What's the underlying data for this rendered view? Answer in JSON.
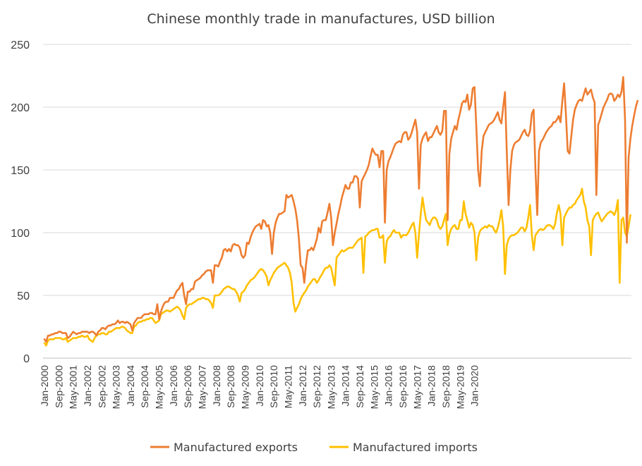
{
  "chart_data": {
    "type": "line",
    "title": "Chinese monthly trade in manufactures, USD billion",
    "xlabel": "",
    "ylabel": "",
    "ylim": [
      0,
      250
    ],
    "yticks": [
      0,
      50,
      100,
      150,
      200,
      250
    ],
    "x_start": "Jan-2000",
    "x_labels": [
      "Jan-2000",
      "Sep-2000",
      "May-2001",
      "Jan-2002",
      "Sep-2002",
      "May-2003",
      "Jan-2004",
      "Sep-2004",
      "May-2005",
      "Jan-2006",
      "Sep-2006",
      "May-2007",
      "Jan-2008",
      "Sep-2008",
      "May-2009",
      "Jan-2010",
      "Sep-2010",
      "May-2011",
      "Jan-2012",
      "Sep-2012",
      "May-2013",
      "Jan-2014",
      "Sep-2014",
      "May-2015",
      "Jan-2016",
      "Sep-2016",
      "May-2017",
      "Jan-2018",
      "Sep-2018",
      "May-2019",
      "Jan-2020"
    ],
    "x_label_step_months": 8,
    "grid": "horizontal",
    "legend_position": "bottom",
    "series": [
      {
        "name": "Manufactured exports",
        "color": "#ED7D31",
        "values": [
          15,
          13,
          18,
          18,
          19,
          19,
          20,
          20,
          21,
          21,
          20,
          20,
          20,
          16,
          17,
          19,
          21,
          20,
          19,
          20,
          20,
          21,
          21,
          21,
          21,
          20,
          21,
          21,
          20,
          18,
          21,
          22,
          24,
          24,
          23,
          25,
          26,
          26,
          27,
          27,
          28,
          30,
          28,
          29,
          29,
          28,
          29,
          28,
          27,
          22,
          28,
          30,
          32,
          32,
          32,
          34,
          35,
          35,
          35,
          36,
          36,
          35,
          35,
          43,
          31,
          37,
          41,
          44,
          45,
          45,
          48,
          48,
          48,
          51,
          54,
          55,
          58,
          60,
          50,
          43,
          53,
          53,
          55,
          55,
          61,
          62,
          63,
          64,
          66,
          67,
          69,
          70,
          70,
          70,
          60,
          74,
          74,
          73,
          77,
          80,
          86,
          87,
          85,
          87,
          85,
          90,
          91,
          90,
          90,
          88,
          82,
          80,
          82,
          92,
          91,
          96,
          100,
          103,
          105,
          106,
          107,
          103,
          110,
          109,
          105,
          106,
          100,
          83,
          100,
          108,
          112,
          115,
          115,
          116,
          117,
          130,
          128,
          129,
          130,
          125,
          119,
          110,
          95,
          74,
          72,
          60,
          75,
          86,
          86,
          88,
          86,
          90,
          95,
          104,
          100,
          109,
          110,
          110,
          116,
          123,
          112,
          90,
          100,
          107,
          115,
          121,
          128,
          133,
          138,
          135,
          135,
          140,
          140,
          145,
          145,
          143,
          120,
          141,
          144,
          147,
          150,
          154,
          161,
          167,
          164,
          162,
          162,
          152,
          165,
          165,
          108,
          150,
          157,
          160,
          164,
          168,
          171,
          172,
          173,
          172,
          178,
          180,
          180,
          174,
          176,
          180,
          185,
          190,
          180,
          135,
          170,
          175,
          178,
          180,
          173,
          176,
          176,
          179,
          182,
          185,
          180,
          178,
          181,
          197,
          197,
          110,
          163,
          175,
          180,
          185,
          182,
          190,
          196,
          203,
          205,
          204,
          210,
          198,
          202,
          215,
          216,
          185,
          150,
          137,
          165,
          177,
          180,
          183,
          186,
          187,
          188,
          190,
          193,
          196,
          190,
          187,
          200,
          212,
          165,
          122,
          150,
          165,
          170,
          172,
          173,
          174,
          177,
          180,
          182,
          178,
          177,
          181,
          195,
          198,
          150,
          114,
          165,
          172,
          174,
          177,
          180,
          182,
          184,
          185,
          188,
          188,
          190,
          193,
          188,
          205,
          219,
          195,
          165,
          163,
          177,
          190,
          198,
          202,
          205,
          206,
          205,
          210,
          215,
          210,
          212,
          214,
          208,
          204,
          130,
          186,
          190,
          195,
          200,
          203,
          206,
          210,
          211,
          210,
          205,
          207,
          210,
          208,
          212,
          224,
          190,
          92,
          160,
          175,
          185,
          193,
          200,
          205
        ]
      },
      {
        "name": "Manufactured imports",
        "color": "#FFC000",
        "values": [
          12,
          10,
          14,
          15,
          15,
          15,
          16,
          16,
          16,
          16,
          15,
          15,
          16,
          13,
          14,
          15,
          16,
          16,
          16,
          17,
          17,
          18,
          17,
          17,
          18,
          15,
          14,
          13,
          16,
          18,
          19,
          19,
          20,
          20,
          19,
          19,
          21,
          21,
          22,
          23,
          24,
          24,
          24,
          25,
          25,
          24,
          22,
          21,
          20,
          20,
          25,
          26,
          28,
          29,
          29,
          30,
          30,
          31,
          31,
          32,
          32,
          30,
          28,
          29,
          30,
          35,
          36,
          37,
          38,
          38,
          37,
          38,
          39,
          40,
          41,
          40,
          38,
          34,
          31,
          40,
          42,
          43,
          43,
          44,
          45,
          46,
          47,
          47,
          48,
          48,
          47,
          47,
          46,
          44,
          40,
          50,
          50,
          50,
          51,
          53,
          55,
          56,
          57,
          57,
          56,
          55,
          55,
          53,
          50,
          45,
          52,
          53,
          55,
          58,
          60,
          62,
          63,
          64,
          66,
          68,
          70,
          71,
          70,
          68,
          65,
          58,
          62,
          65,
          68,
          70,
          72,
          73,
          74,
          75,
          76,
          74,
          72,
          68,
          60,
          44,
          37,
          40,
          43,
          47,
          50,
          52,
          54,
          57,
          59,
          61,
          63,
          63,
          60,
          62,
          65,
          67,
          70,
          72,
          72,
          74,
          72,
          65,
          58,
          80,
          82,
          84,
          86,
          85,
          86,
          87,
          88,
          88,
          88,
          90,
          92,
          94,
          95,
          96,
          68,
          97,
          98,
          100,
          101,
          102,
          102,
          103,
          103,
          96,
          96,
          98,
          76,
          93,
          96,
          97,
          100,
          102,
          100,
          100,
          100,
          96,
          98,
          98,
          98,
          100,
          103,
          106,
          108,
          100,
          80,
          99,
          115,
          128,
          118,
          110,
          108,
          106,
          110,
          112,
          112,
          110,
          105,
          103,
          105,
          110,
          115,
          90,
          99,
          103,
          105,
          106,
          103,
          103,
          110,
          110,
          125,
          115,
          110,
          104,
          108,
          106,
          100,
          78,
          96,
          101,
          103,
          104,
          105,
          104,
          106,
          105,
          105,
          102,
          100,
          104,
          110,
          118,
          105,
          67,
          90,
          95,
          97,
          98,
          98,
          99,
          100,
          102,
          104,
          104,
          101,
          104,
          112,
          122,
          98,
          86,
          98,
          100,
          102,
          103,
          102,
          103,
          105,
          106,
          106,
          105,
          103,
          107,
          116,
          122,
          115,
          90,
          112,
          115,
          118,
          120,
          120,
          122,
          123,
          126,
          128,
          130,
          135,
          125,
          120,
          110,
          105,
          82,
          110,
          113,
          115,
          116,
          112,
          109,
          111,
          113,
          115,
          116,
          117,
          116,
          114,
          118,
          126,
          60,
          110,
          112,
          100,
          97,
          105,
          114
        ]
      }
    ]
  }
}
